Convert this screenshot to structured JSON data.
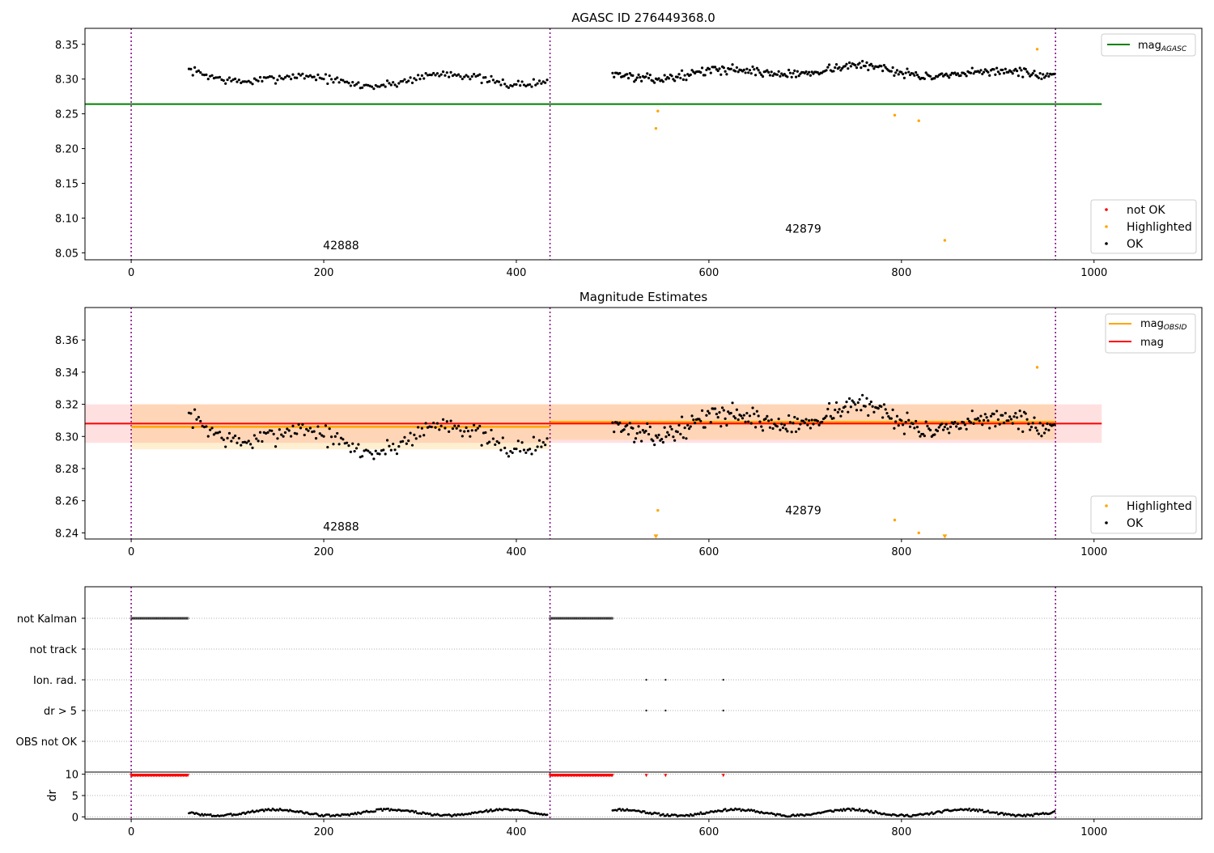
{
  "chart_data": [
    {
      "type": "scatter",
      "title": "AGASC ID 276449368.0",
      "xlim": [
        -48,
        1112
      ],
      "ylim": [
        8.04,
        8.373
      ],
      "x_ticks": [
        0,
        200,
        400,
        600,
        800,
        1000
      ],
      "x_tick_labels": [
        "0",
        "200",
        "400",
        "600",
        "800",
        "1000"
      ],
      "y_ticks": [
        8.05,
        8.1,
        8.15,
        8.2,
        8.25,
        8.3,
        8.35
      ],
      "y_tick_labels": [
        "8.05",
        "8.10",
        "8.15",
        "8.20",
        "8.25",
        "8.30",
        "8.35"
      ],
      "obsid_boundaries": [
        0,
        435,
        960
      ],
      "obsid_labels": [
        {
          "text": "42888",
          "x": 218,
          "y": 8.055
        },
        {
          "text": "42879",
          "x": 698,
          "y": 8.079
        }
      ],
      "reference_line": {
        "name": "mag_AGASC",
        "y": 8.264,
        "x_range": [
          -48,
          1008
        ],
        "color": "#008000"
      },
      "legend_lines": [
        {
          "label": "mag",
          "subscript": "AGASC",
          "color": "#008000"
        }
      ],
      "legend_points": [
        {
          "label": "not OK",
          "color": "#ff0000"
        },
        {
          "label": "Highlighted",
          "color": "#ffa500"
        },
        {
          "label": "OK",
          "color": "#000000"
        }
      ],
      "segments": [
        {
          "x_range": [
            60,
            432
          ],
          "level": 8.306,
          "amplitude": 0.012,
          "spread": 0.006,
          "trend": -0.012,
          "step": 2,
          "seed": 7
        },
        {
          "x_range": [
            500,
            960
          ],
          "level": 8.31,
          "amplitude": 0.01,
          "spread": 0.006,
          "trend": 0.0,
          "step": 1.5,
          "seed": 13
        }
      ],
      "highlighted_points": [
        {
          "x": 545,
          "y": 8.229
        },
        {
          "x": 547,
          "y": 8.254
        },
        {
          "x": 793,
          "y": 8.248
        },
        {
          "x": 818,
          "y": 8.24
        },
        {
          "x": 845,
          "y": 8.068
        },
        {
          "x": 941,
          "y": 8.343
        }
      ],
      "grid": false,
      "legend_placement": "upper-right and lower-right"
    },
    {
      "type": "scatter",
      "title": "Magnitude Estimates",
      "xlim": [
        -48,
        1112
      ],
      "ylim": [
        8.2362,
        8.3802
      ],
      "x_ticks": [
        0,
        200,
        400,
        600,
        800,
        1000
      ],
      "x_tick_labels": [
        "0",
        "200",
        "400",
        "600",
        "800",
        "1000"
      ],
      "y_ticks": [
        8.24,
        8.26,
        8.28,
        8.3,
        8.32,
        8.34,
        8.36
      ],
      "y_tick_labels": [
        "8.24",
        "8.26",
        "8.28",
        "8.30",
        "8.32",
        "8.34",
        "8.36"
      ],
      "obsid_boundaries": [
        0,
        435,
        960
      ],
      "obsid_labels": [
        {
          "text": "42888",
          "x": 218,
          "y": 8.2416
        },
        {
          "text": "42879",
          "x": 698,
          "y": 8.2516
        }
      ],
      "mag_line": {
        "name": "mag",
        "y": 8.308,
        "band": [
          8.296,
          8.32
        ],
        "x_range": [
          -48,
          1008
        ],
        "color": "#ff0000"
      },
      "obsid_mags": [
        {
          "x_range": [
            0,
            435
          ],
          "y": 8.306,
          "band": [
            8.292,
            8.32
          ]
        },
        {
          "x_range": [
            435,
            960
          ],
          "y": 8.309,
          "band": [
            8.298,
            8.32
          ]
        }
      ],
      "legend_lines": [
        {
          "label": "mag",
          "subscript": "OBSID",
          "color": "#ffa500"
        },
        {
          "label": "mag",
          "subscript": "",
          "color": "#ff0000"
        }
      ],
      "legend_points": [
        {
          "label": "Highlighted",
          "color": "#ffa500"
        },
        {
          "label": "OK",
          "color": "#000000"
        }
      ],
      "segments": [
        {
          "x_range": [
            60,
            432
          ],
          "level": 8.306,
          "amplitude": 0.012,
          "spread": 0.006,
          "trend": -0.012,
          "step": 2,
          "seed": 7
        },
        {
          "x_range": [
            500,
            960
          ],
          "level": 8.31,
          "amplitude": 0.01,
          "spread": 0.006,
          "trend": 0.0,
          "step": 1.5,
          "seed": 13
        }
      ],
      "highlighted_points": [
        {
          "x": 547,
          "y": 8.254
        },
        {
          "x": 793,
          "y": 8.248
        },
        {
          "x": 818,
          "y": 8.24
        },
        {
          "x": 941,
          "y": 8.343
        }
      ],
      "clipped_points": [
        {
          "x": 545,
          "y": 8.2375
        },
        {
          "x": 845,
          "y": 8.2375
        }
      ],
      "grid": false,
      "legend_placement": "upper-right and lower-right"
    },
    {
      "type": "scatter",
      "title": "",
      "xlim": [
        -48,
        1112
      ],
      "obsid_boundaries": [
        0,
        435,
        960
      ],
      "flag_rows": [
        "not Kalman",
        "not track",
        "Ion. rad.",
        "dr > 5",
        "OBS not OK"
      ],
      "flags": {
        "not Kalman": [
          [
            0,
            60
          ],
          [
            435,
            500
          ]
        ],
        "not track": [],
        "Ion. rad.": [
          535,
          555,
          615
        ],
        "dr > 5": [
          535,
          555,
          615
        ],
        "OBS not OK": []
      },
      "dr_panel": {
        "ylabel": "dr",
        "ylim": [
          -0.5,
          10.5
        ],
        "y_ticks": [
          0,
          5,
          10
        ],
        "y_tick_labels": [
          "0",
          "5",
          "10"
        ],
        "clipped_markers": [
          [
            0,
            60
          ],
          [
            435,
            500
          ],
          535,
          555,
          615
        ]
      },
      "x_ticks": [
        0,
        200,
        400,
        600,
        800,
        1000
      ],
      "x_tick_labels": [
        "0",
        "200",
        "400",
        "600",
        "800",
        "1000"
      ],
      "grid": "dotted horizontal lines per row"
    }
  ]
}
